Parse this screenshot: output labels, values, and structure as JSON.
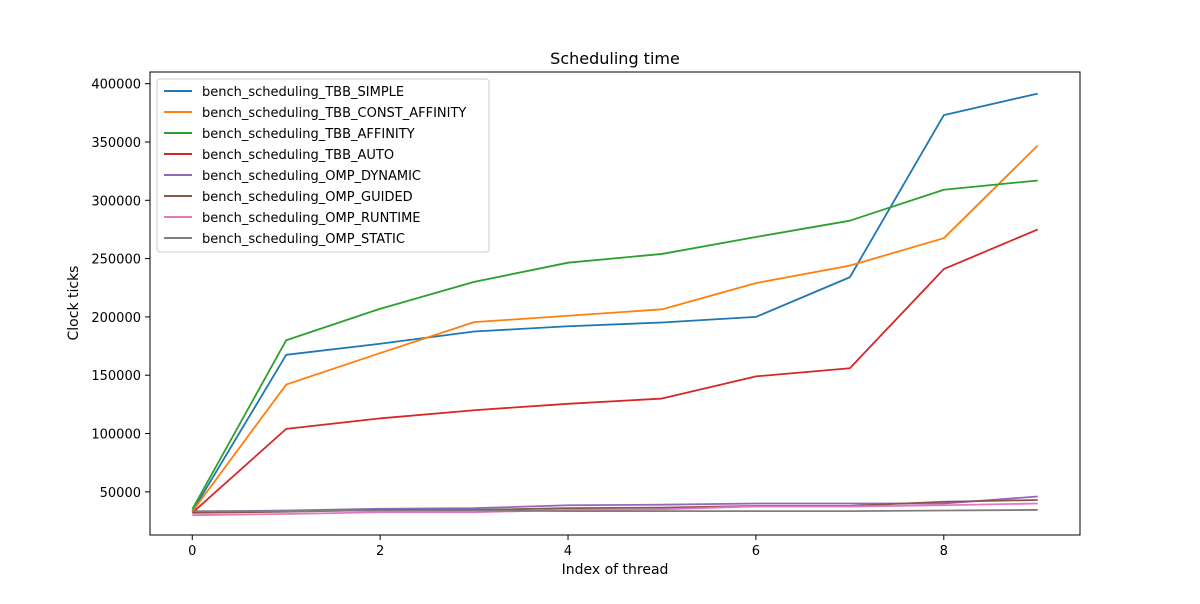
{
  "chart_data": {
    "type": "line",
    "title": "Scheduling time",
    "xlabel": "Index of thread",
    "ylabel": "Clock ticks",
    "x": [
      0,
      1,
      2,
      3,
      4,
      5,
      6,
      7,
      8,
      9
    ],
    "xlim": [
      -0.45,
      9.45
    ],
    "ylim": [
      13000,
      410000
    ],
    "xticks": [
      0,
      2,
      4,
      6,
      8
    ],
    "yticks": [
      50000,
      100000,
      150000,
      200000,
      250000,
      300000,
      350000,
      400000
    ],
    "grid": false,
    "legend_position": "upper-left",
    "series": [
      {
        "name": "bench_scheduling_TBB_SIMPLE",
        "color": "#1f77b4",
        "values": [
          33000,
          167500,
          177000,
          187500,
          192000,
          195200,
          200000,
          234000,
          373000,
          391500
        ]
      },
      {
        "name": "bench_scheduling_TBB_CONST_AFFINITY",
        "color": "#ff7f0e",
        "values": [
          33000,
          142000,
          169000,
          195500,
          201000,
          206500,
          229000,
          244000,
          267500,
          347000
        ]
      },
      {
        "name": "bench_scheduling_TBB_AFFINITY",
        "color": "#2ca02c",
        "values": [
          35000,
          180000,
          207000,
          230000,
          246500,
          254000,
          268500,
          282500,
          309000,
          317000
        ]
      },
      {
        "name": "bench_scheduling_TBB_AUTO",
        "color": "#d62728",
        "values": [
          32000,
          104000,
          113000,
          120000,
          125500,
          130000,
          149000,
          156000,
          241000,
          275000
        ]
      },
      {
        "name": "bench_scheduling_OMP_DYNAMIC",
        "color": "#9467bd",
        "values": [
          33000,
          34000,
          35500,
          36000,
          38500,
          39000,
          40000,
          40000,
          40000,
          46000
        ]
      },
      {
        "name": "bench_scheduling_OMP_GUIDED",
        "color": "#8c564b",
        "values": [
          32000,
          33000,
          34500,
          34500,
          36000,
          36500,
          38000,
          38000,
          41500,
          43000
        ]
      },
      {
        "name": "bench_scheduling_OMP_RUNTIME",
        "color": "#e377c2",
        "values": [
          30000,
          31000,
          32500,
          32500,
          34500,
          35000,
          37500,
          37500,
          38500,
          40000
        ]
      },
      {
        "name": "bench_scheduling_OMP_STATIC",
        "color": "#7f7f7f",
        "values": [
          33500,
          33500,
          34000,
          34000,
          33500,
          33500,
          33500,
          33500,
          34000,
          34500
        ]
      }
    ]
  }
}
